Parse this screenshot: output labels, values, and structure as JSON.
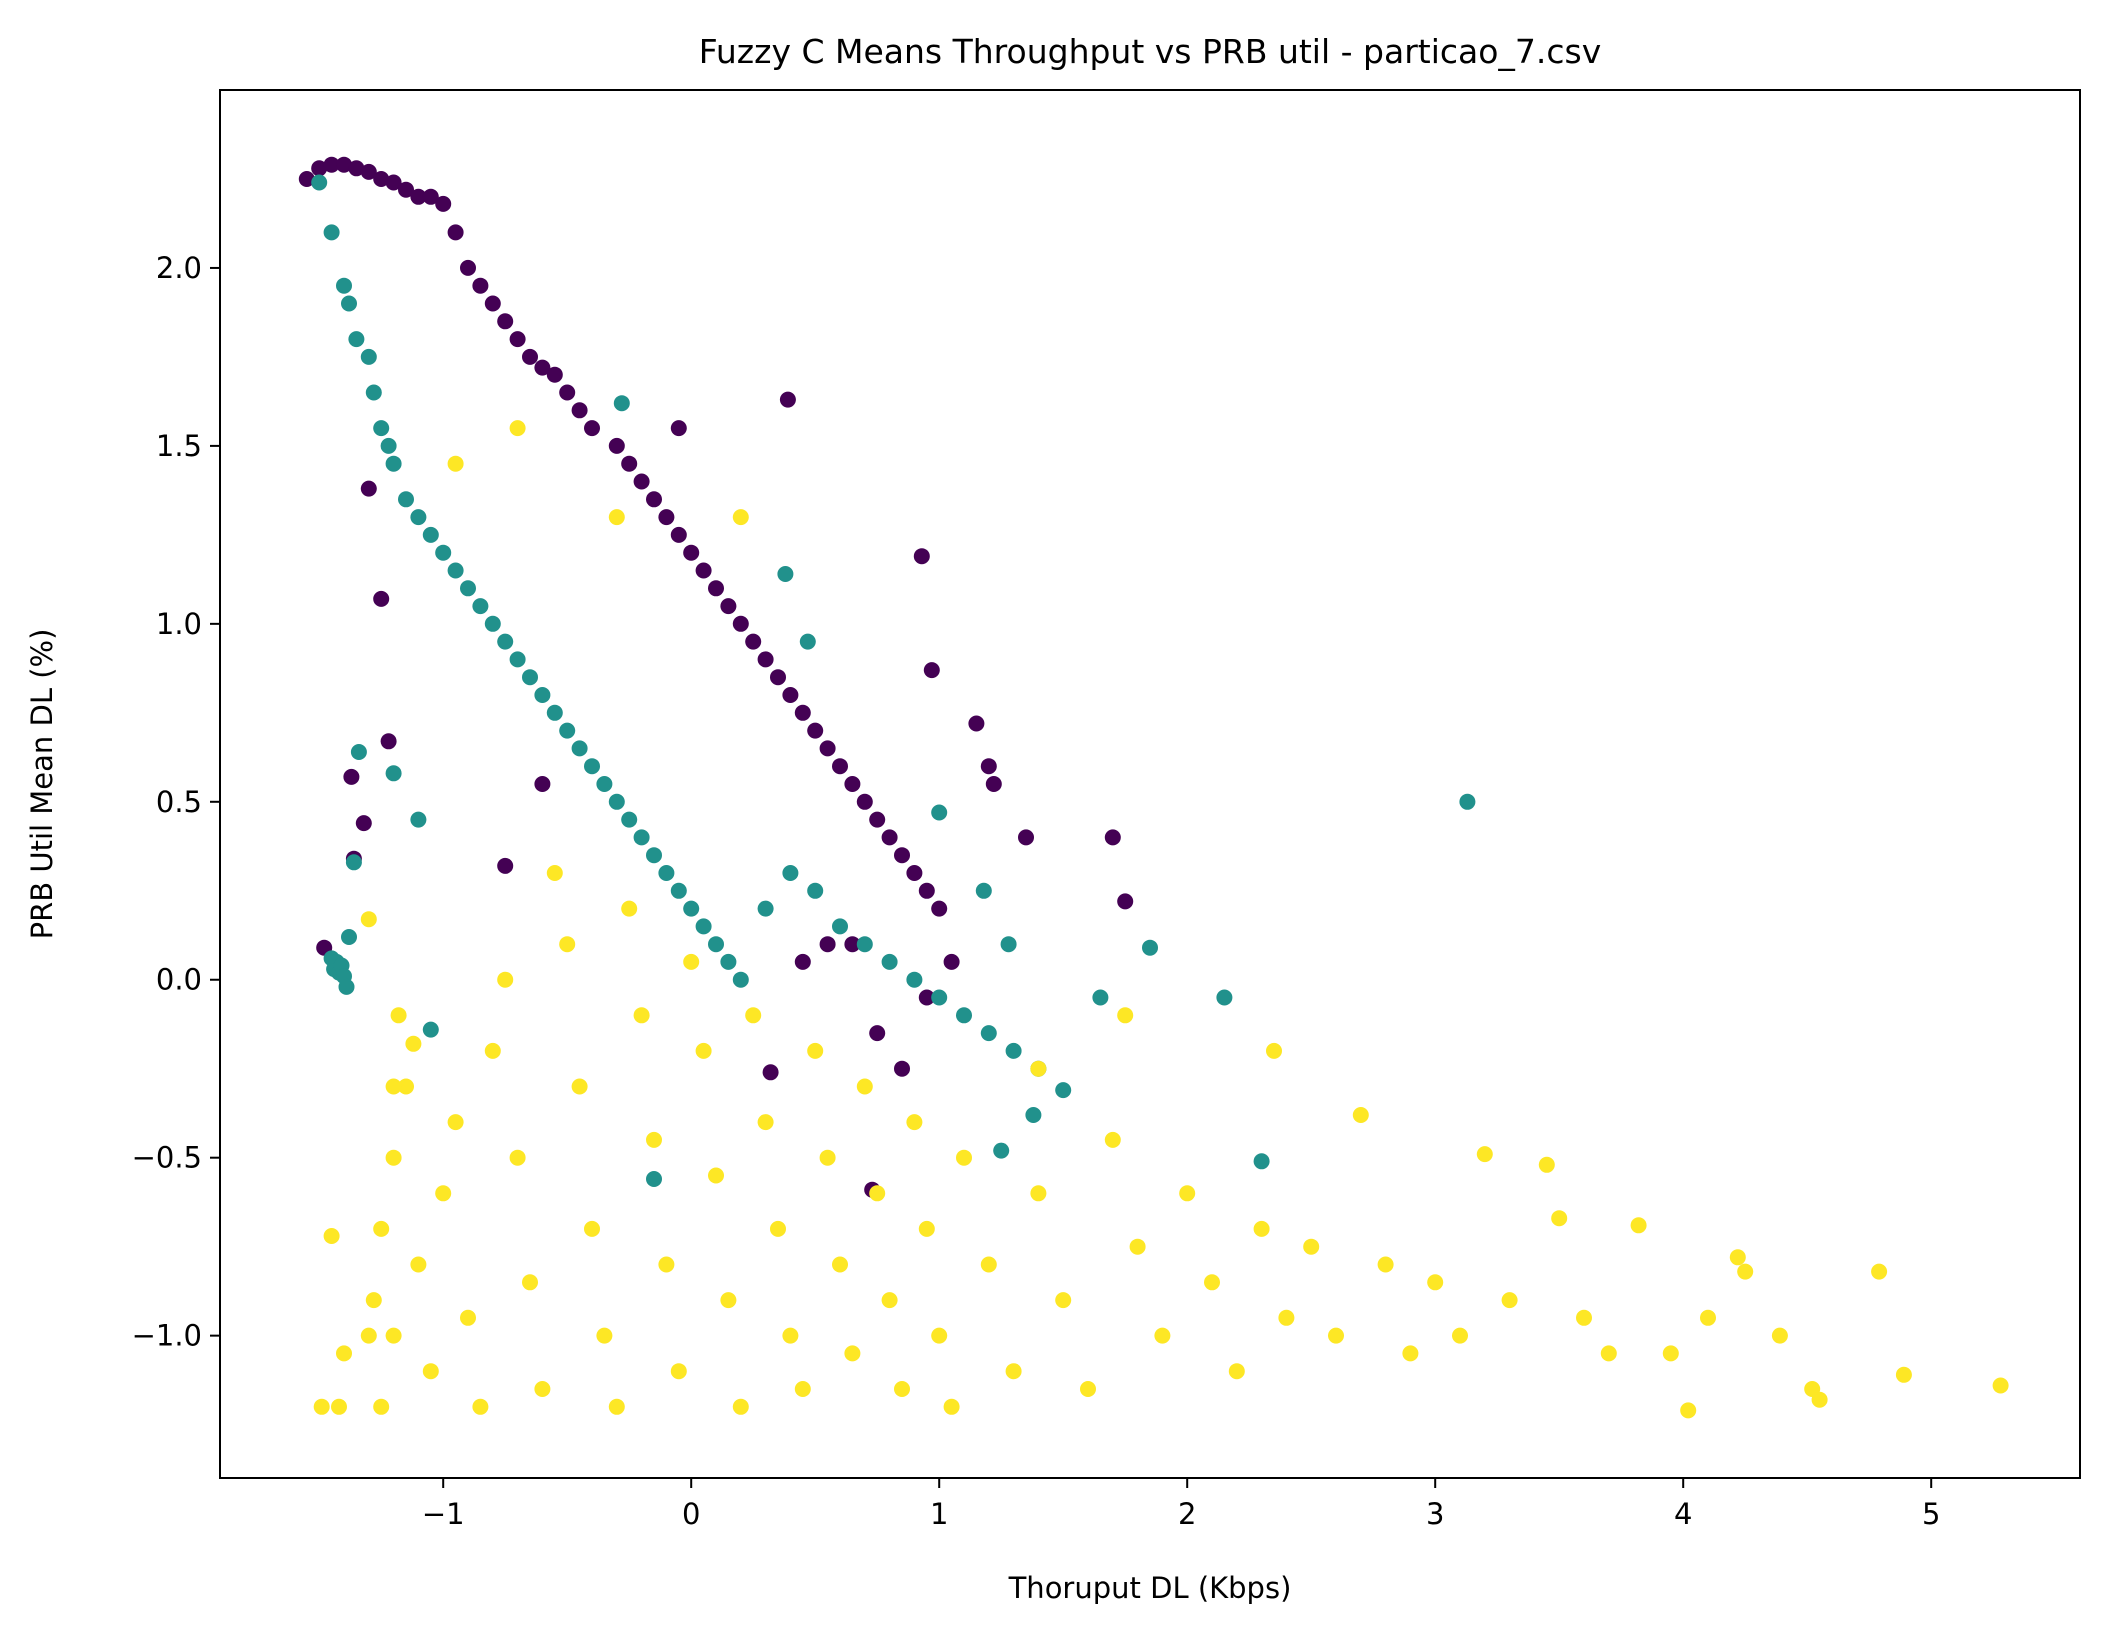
{
  "chart_data": {
    "type": "scatter",
    "title": "Fuzzy C Means Throughput vs PRB util - particao_7.csv",
    "xlabel": "Thoruput DL (Kbps)",
    "ylabel": "PRB Util Mean DL (%)",
    "xlim": [
      -1.9,
      5.6
    ],
    "ylim": [
      -1.4,
      2.5
    ],
    "xticks": [
      -1,
      0,
      1,
      2,
      3,
      4,
      5
    ],
    "xtick_labels": [
      "−1",
      "0",
      "1",
      "2",
      "3",
      "4",
      "5"
    ],
    "yticks": [
      -1.0,
      -0.5,
      0.0,
      0.5,
      1.0,
      1.5,
      2.0
    ],
    "ytick_labels": [
      "−1.0",
      "−0.5",
      "0.0",
      "0.5",
      "1.0",
      "1.5",
      "2.0"
    ],
    "grid": false,
    "legend": "none",
    "series": [
      {
        "color": "#440154",
        "points": [
          [
            -1.55,
            2.25
          ],
          [
            -1.5,
            2.28
          ],
          [
            -1.45,
            2.29
          ],
          [
            -1.4,
            2.29
          ],
          [
            -1.35,
            2.28
          ],
          [
            -1.3,
            2.27
          ],
          [
            -1.25,
            2.25
          ],
          [
            -1.2,
            2.24
          ],
          [
            -1.15,
            2.22
          ],
          [
            -1.1,
            2.2
          ],
          [
            -1.05,
            2.2
          ],
          [
            -1.0,
            2.18
          ],
          [
            -0.95,
            2.1
          ],
          [
            -0.9,
            2.0
          ],
          [
            -0.85,
            1.95
          ],
          [
            -0.8,
            1.9
          ],
          [
            -0.75,
            1.85
          ],
          [
            -0.7,
            1.8
          ],
          [
            -0.65,
            1.75
          ],
          [
            -0.6,
            1.72
          ],
          [
            -0.55,
            1.7
          ],
          [
            -0.5,
            1.65
          ],
          [
            -0.45,
            1.6
          ],
          [
            -0.4,
            1.55
          ],
          [
            -0.3,
            1.5
          ],
          [
            -0.25,
            1.45
          ],
          [
            -0.2,
            1.4
          ],
          [
            -0.15,
            1.35
          ],
          [
            -0.1,
            1.3
          ],
          [
            -0.05,
            1.25
          ],
          [
            0.0,
            1.2
          ],
          [
            0.05,
            1.15
          ],
          [
            0.1,
            1.1
          ],
          [
            0.15,
            1.05
          ],
          [
            0.2,
            1.0
          ],
          [
            0.25,
            0.95
          ],
          [
            0.3,
            0.9
          ],
          [
            0.35,
            0.85
          ],
          [
            0.4,
            0.8
          ],
          [
            0.45,
            0.75
          ],
          [
            0.5,
            0.7
          ],
          [
            0.55,
            0.65
          ],
          [
            0.6,
            0.6
          ],
          [
            0.65,
            0.55
          ],
          [
            0.7,
            0.5
          ],
          [
            0.75,
            0.45
          ],
          [
            0.8,
            0.4
          ],
          [
            0.85,
            0.35
          ],
          [
            0.9,
            0.3
          ],
          [
            0.95,
            0.25
          ],
          [
            1.0,
            0.2
          ],
          [
            0.39,
            1.63
          ],
          [
            -0.05,
            1.55
          ],
          [
            0.93,
            1.19
          ],
          [
            0.97,
            0.87
          ],
          [
            1.15,
            0.72
          ],
          [
            1.2,
            0.6
          ],
          [
            1.22,
            0.55
          ],
          [
            1.35,
            0.4
          ],
          [
            1.7,
            0.4
          ],
          [
            1.75,
            0.22
          ],
          [
            0.32,
            -0.26
          ],
          [
            0.73,
            -0.59
          ],
          [
            -1.48,
            0.09
          ],
          [
            -1.37,
            0.57
          ],
          [
            -1.36,
            0.34
          ],
          [
            -1.32,
            0.44
          ],
          [
            -1.3,
            1.38
          ],
          [
            -1.25,
            1.07
          ],
          [
            -1.22,
            0.67
          ],
          [
            -0.75,
            0.32
          ],
          [
            -0.6,
            0.55
          ],
          [
            1.05,
            0.05
          ],
          [
            0.95,
            -0.05
          ],
          [
            0.85,
            -0.25
          ],
          [
            0.75,
            -0.15
          ],
          [
            0.65,
            0.1
          ],
          [
            0.55,
            0.1
          ],
          [
            0.45,
            0.05
          ]
        ]
      },
      {
        "color": "#21918c",
        "points": [
          [
            -1.5,
            2.24
          ],
          [
            -1.45,
            2.1
          ],
          [
            -1.4,
            1.95
          ],
          [
            -1.38,
            1.9
          ],
          [
            -1.35,
            1.8
          ],
          [
            -1.3,
            1.75
          ],
          [
            -1.28,
            1.65
          ],
          [
            -1.25,
            1.55
          ],
          [
            -1.22,
            1.5
          ],
          [
            -1.2,
            1.45
          ],
          [
            -1.15,
            1.35
          ],
          [
            -1.1,
            1.3
          ],
          [
            -1.05,
            1.25
          ],
          [
            -1.0,
            1.2
          ],
          [
            -0.95,
            1.15
          ],
          [
            -0.9,
            1.1
          ],
          [
            -0.85,
            1.05
          ],
          [
            -0.8,
            1.0
          ],
          [
            -0.75,
            0.95
          ],
          [
            -0.7,
            0.9
          ],
          [
            -0.65,
            0.85
          ],
          [
            -0.6,
            0.8
          ],
          [
            -0.55,
            0.75
          ],
          [
            -0.5,
            0.7
          ],
          [
            -0.45,
            0.65
          ],
          [
            -0.4,
            0.6
          ],
          [
            -0.35,
            0.55
          ],
          [
            -0.3,
            0.5
          ],
          [
            -0.25,
            0.45
          ],
          [
            -0.2,
            0.4
          ],
          [
            -0.15,
            0.35
          ],
          [
            -0.1,
            0.3
          ],
          [
            -0.05,
            0.25
          ],
          [
            0.0,
            0.2
          ],
          [
            0.05,
            0.15
          ],
          [
            0.1,
            0.1
          ],
          [
            0.15,
            0.05
          ],
          [
            0.2,
            0.0
          ],
          [
            0.3,
            0.2
          ],
          [
            0.4,
            0.3
          ],
          [
            0.5,
            0.25
          ],
          [
            0.6,
            0.15
          ],
          [
            0.7,
            0.1
          ],
          [
            0.8,
            0.05
          ],
          [
            0.9,
            0.0
          ],
          [
            1.0,
            -0.05
          ],
          [
            1.1,
            -0.1
          ],
          [
            1.2,
            -0.15
          ],
          [
            1.3,
            -0.2
          ],
          [
            1.4,
            -0.25
          ],
          [
            -1.45,
            0.06
          ],
          [
            -1.44,
            0.03
          ],
          [
            -1.43,
            0.05
          ],
          [
            -1.42,
            0.02
          ],
          [
            -1.41,
            0.04
          ],
          [
            -1.4,
            0.01
          ],
          [
            -1.39,
            -0.02
          ],
          [
            -1.38,
            0.12
          ],
          [
            -1.36,
            0.33
          ],
          [
            -1.34,
            0.64
          ],
          [
            -1.2,
            0.58
          ],
          [
            -1.1,
            0.45
          ],
          [
            -1.05,
            -0.14
          ],
          [
            -0.15,
            -0.56
          ],
          [
            3.13,
            0.5
          ],
          [
            2.3,
            -0.51
          ],
          [
            2.15,
            -0.05
          ],
          [
            1.85,
            0.09
          ],
          [
            1.65,
            -0.05
          ],
          [
            1.5,
            -0.31
          ],
          [
            1.38,
            -0.38
          ],
          [
            1.25,
            -0.48
          ],
          [
            0.38,
            1.14
          ],
          [
            -0.28,
            1.62
          ],
          [
            0.47,
            0.95
          ],
          [
            1.28,
            0.1
          ],
          [
            1.18,
            0.25
          ],
          [
            1.0,
            0.47
          ]
        ]
      },
      {
        "color": "#fde725",
        "points": [
          [
            -1.49,
            -1.2
          ],
          [
            -1.42,
            -1.2
          ],
          [
            -1.45,
            -0.72
          ],
          [
            -1.4,
            -1.05
          ],
          [
            -1.3,
            -1.0
          ],
          [
            -1.28,
            -0.9
          ],
          [
            -1.25,
            -0.7
          ],
          [
            -1.2,
            -0.5
          ],
          [
            -1.15,
            -0.3
          ],
          [
            -1.12,
            -0.18
          ],
          [
            -1.1,
            -0.8
          ],
          [
            -1.05,
            -1.1
          ],
          [
            -1.0,
            -0.6
          ],
          [
            -0.95,
            -0.4
          ],
          [
            -0.9,
            -0.95
          ],
          [
            -0.85,
            -1.2
          ],
          [
            -0.8,
            -0.2
          ],
          [
            -0.75,
            0.0
          ],
          [
            -0.7,
            -0.5
          ],
          [
            -0.65,
            -0.85
          ],
          [
            -0.6,
            -1.15
          ],
          [
            -0.55,
            0.3
          ],
          [
            -0.5,
            0.1
          ],
          [
            -0.45,
            -0.3
          ],
          [
            -0.4,
            -0.7
          ],
          [
            -0.35,
            -1.0
          ],
          [
            -0.3,
            -1.2
          ],
          [
            -0.25,
            0.2
          ],
          [
            -0.2,
            -0.1
          ],
          [
            -0.15,
            -0.45
          ],
          [
            -0.1,
            -0.8
          ],
          [
            -0.05,
            -1.1
          ],
          [
            0.0,
            0.05
          ],
          [
            0.05,
            -0.2
          ],
          [
            0.1,
            -0.55
          ],
          [
            0.15,
            -0.9
          ],
          [
            0.2,
            -1.2
          ],
          [
            0.25,
            -0.1
          ],
          [
            0.3,
            -0.4
          ],
          [
            0.35,
            -0.7
          ],
          [
            0.4,
            -1.0
          ],
          [
            0.45,
            -1.15
          ],
          [
            0.5,
            -0.2
          ],
          [
            0.55,
            -0.5
          ],
          [
            0.6,
            -0.8
          ],
          [
            0.65,
            -1.05
          ],
          [
            0.7,
            -0.3
          ],
          [
            0.75,
            -0.6
          ],
          [
            0.8,
            -0.9
          ],
          [
            0.85,
            -1.15
          ],
          [
            0.9,
            -0.4
          ],
          [
            0.95,
            -0.7
          ],
          [
            1.0,
            -1.0
          ],
          [
            1.05,
            -1.2
          ],
          [
            1.1,
            -0.5
          ],
          [
            1.2,
            -0.8
          ],
          [
            1.3,
            -1.1
          ],
          [
            1.4,
            -0.6
          ],
          [
            1.5,
            -0.9
          ],
          [
            1.6,
            -1.15
          ],
          [
            1.7,
            -0.45
          ],
          [
            1.8,
            -0.75
          ],
          [
            1.9,
            -1.0
          ],
          [
            2.0,
            -0.6
          ],
          [
            2.1,
            -0.85
          ],
          [
            2.2,
            -1.1
          ],
          [
            2.3,
            -0.7
          ],
          [
            2.4,
            -0.95
          ],
          [
            2.5,
            -0.75
          ],
          [
            2.6,
            -1.0
          ],
          [
            2.7,
            -0.38
          ],
          [
            2.8,
            -0.8
          ],
          [
            2.9,
            -1.05
          ],
          [
            3.0,
            -0.85
          ],
          [
            3.1,
            -1.0
          ],
          [
            3.2,
            -0.49
          ],
          [
            3.3,
            -0.9
          ],
          [
            3.45,
            -0.52
          ],
          [
            3.5,
            -0.67
          ],
          [
            3.6,
            -0.95
          ],
          [
            3.7,
            -1.05
          ],
          [
            3.82,
            -0.69
          ],
          [
            3.95,
            -1.05
          ],
          [
            4.02,
            -1.21
          ],
          [
            4.1,
            -0.95
          ],
          [
            4.22,
            -0.78
          ],
          [
            4.25,
            -0.82
          ],
          [
            4.39,
            -1.0
          ],
          [
            4.52,
            -1.15
          ],
          [
            4.55,
            -1.18
          ],
          [
            4.79,
            -0.82
          ],
          [
            4.89,
            -1.11
          ],
          [
            5.28,
            -1.14
          ],
          [
            2.35,
            -0.2
          ],
          [
            1.75,
            -0.1
          ],
          [
            1.4,
            -0.25
          ],
          [
            0.2,
            1.3
          ],
          [
            -0.95,
            1.45
          ],
          [
            -0.7,
            1.55
          ],
          [
            -0.3,
            1.3
          ],
          [
            -1.3,
            0.17
          ],
          [
            -1.18,
            -0.1
          ],
          [
            -1.2,
            -0.3
          ],
          [
            -1.2,
            -1.0
          ],
          [
            -1.25,
            -1.2
          ]
        ]
      }
    ]
  }
}
